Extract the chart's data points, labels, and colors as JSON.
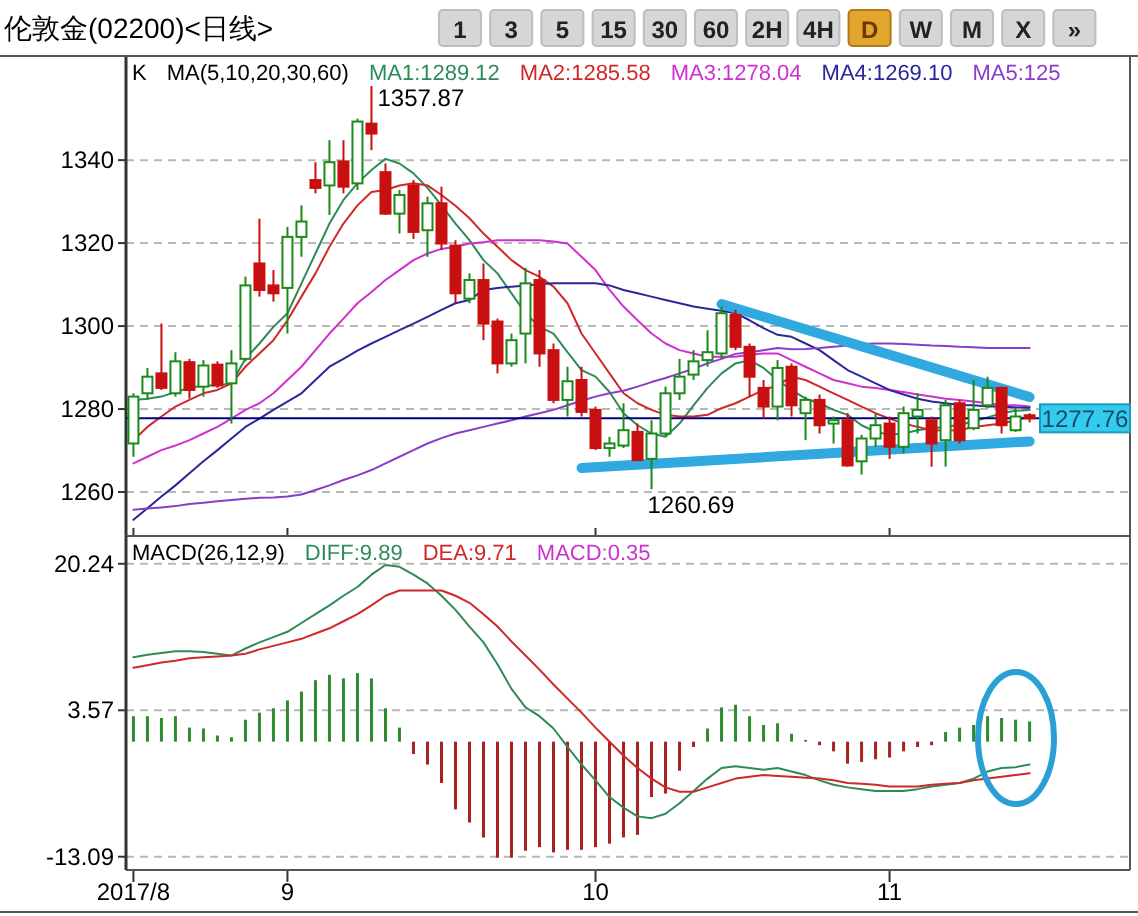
{
  "chart_data": [
    {
      "type": "candlestick",
      "title": "伦敦金(02200)<日线>",
      "legend_title": "MA(5,10,20,30,60)",
      "legend": "top",
      "grid": "y",
      "tick_labels": "y",
      "annotations": [
        "1",
        "3",
        "5",
        "15",
        "30",
        "60",
        "2H",
        "4H",
        "D",
        "W",
        "M",
        "X",
        "»",
        "K",
        "1357.87",
        "1260.69"
      ],
      "categories": [
        "2017/8",
        null,
        null,
        null,
        null,
        null,
        null,
        null,
        null,
        null,
        null,
        "9",
        null,
        null,
        null,
        null,
        null,
        null,
        null,
        null,
        null,
        null,
        null,
        null,
        null,
        null,
        null,
        null,
        null,
        null,
        null,
        null,
        null,
        "10",
        null,
        null,
        null,
        null,
        null,
        null,
        null,
        null,
        null,
        null,
        null,
        null,
        null,
        null,
        null,
        null,
        null,
        null,
        null,
        null,
        "11",
        null,
        null,
        null,
        null,
        null,
        null,
        null,
        null,
        null,
        null
      ],
      "ohlc": [
        [
          1271.7,
          1283.8,
          1268.5,
          1283.0
        ],
        [
          1283.8,
          1289.9,
          1282.2,
          1287.8
        ],
        [
          1288.6,
          1300.6,
          1284.6,
          1285.1
        ],
        [
          1283.8,
          1293.7,
          1283.0,
          1291.5
        ],
        [
          1291.3,
          1292.1,
          1282.5,
          1284.6
        ],
        [
          1285.4,
          1291.8,
          1283.0,
          1290.5
        ],
        [
          1290.7,
          1291.5,
          1285.1,
          1285.7
        ],
        [
          1286.2,
          1294.2,
          1276.5,
          1291.0
        ],
        [
          1292.1,
          1311.9,
          1291.5,
          1309.8
        ],
        [
          1315.1,
          1325.9,
          1307.1,
          1308.7
        ],
        [
          1309.8,
          1313.5,
          1305.9,
          1307.9
        ],
        [
          1309.2,
          1323.9,
          1298.2,
          1321.5
        ],
        [
          1321.5,
          1329.1,
          1316.7,
          1325.2
        ],
        [
          1335.2,
          1339.5,
          1332.0,
          1333.3
        ],
        [
          1333.9,
          1344.8,
          1326.8,
          1339.5
        ],
        [
          1339.7,
          1344.8,
          1332.0,
          1333.6
        ],
        [
          1334.4,
          1350.0,
          1332.8,
          1349.3
        ],
        [
          1348.8,
          1357.87,
          1342.4,
          1346.4
        ],
        [
          1337.1,
          1339.2,
          1326.8,
          1327.1
        ],
        [
          1327.1,
          1332.8,
          1322.3,
          1331.6
        ],
        [
          1333.9,
          1335.2,
          1321.0,
          1322.7
        ],
        [
          1323.1,
          1331.2,
          1316.7,
          1329.6
        ],
        [
          1329.6,
          1333.6,
          1318.3,
          1319.9
        ],
        [
          1319.4,
          1320.7,
          1305.5,
          1307.9
        ],
        [
          1306.6,
          1312.7,
          1305.5,
          1311.1
        ],
        [
          1311.1,
          1315.1,
          1296.6,
          1300.6
        ],
        [
          1301.1,
          1301.8,
          1288.6,
          1291.0
        ],
        [
          1291.0,
          1298.2,
          1290.2,
          1296.6
        ],
        [
          1298.2,
          1314.0,
          1291.0,
          1310.3
        ],
        [
          1311.1,
          1313.5,
          1290.2,
          1293.4
        ],
        [
          1294.2,
          1295.8,
          1281.4,
          1282.2
        ],
        [
          1282.2,
          1290.2,
          1278.2,
          1286.7
        ],
        [
          1287.0,
          1290.2,
          1278.2,
          1279.3
        ],
        [
          1279.8,
          1280.6,
          1270.1,
          1270.6
        ],
        [
          1270.6,
          1273.3,
          1268.5,
          1271.7
        ],
        [
          1271.2,
          1281.4,
          1270.6,
          1274.9
        ],
        [
          1274.5,
          1276.5,
          1267.4,
          1267.7
        ],
        [
          1268.0,
          1277.3,
          1260.69,
          1274.1
        ],
        [
          1274.1,
          1285.4,
          1273.5,
          1283.8
        ],
        [
          1283.8,
          1292.1,
          1282.2,
          1287.8
        ],
        [
          1288.3,
          1294.2,
          1287.0,
          1291.5
        ],
        [
          1291.8,
          1299.0,
          1290.2,
          1293.7
        ],
        [
          1293.4,
          1304.7,
          1292.1,
          1303.1
        ],
        [
          1302.7,
          1303.9,
          1294.2,
          1295.0
        ],
        [
          1295.0,
          1295.8,
          1283.0,
          1287.8
        ],
        [
          1285.1,
          1287.0,
          1277.7,
          1280.6
        ],
        [
          1280.6,
          1291.8,
          1277.3,
          1289.9
        ],
        [
          1290.2,
          1291.0,
          1278.2,
          1280.9
        ],
        [
          1279.0,
          1283.0,
          1272.5,
          1282.2
        ],
        [
          1282.2,
          1283.5,
          1274.1,
          1276.1
        ],
        [
          1276.5,
          1278.2,
          1271.7,
          1277.3
        ],
        [
          1277.3,
          1279.0,
          1266.1,
          1266.4
        ],
        [
          1267.4,
          1273.8,
          1264.2,
          1272.9
        ],
        [
          1272.9,
          1279.0,
          1270.9,
          1276.1
        ],
        [
          1276.5,
          1278.2,
          1268.0,
          1270.9
        ],
        [
          1270.9,
          1280.6,
          1269.3,
          1279.0
        ],
        [
          1278.2,
          1283.8,
          1274.1,
          1279.8
        ],
        [
          1277.3,
          1278.2,
          1266.1,
          1271.7
        ],
        [
          1272.5,
          1282.2,
          1266.1,
          1280.9
        ],
        [
          1281.4,
          1282.2,
          1271.7,
          1272.5
        ],
        [
          1275.4,
          1287.0,
          1274.9,
          1279.8
        ],
        [
          1280.9,
          1287.8,
          1280.2,
          1285.1
        ],
        [
          1285.1,
          1285.4,
          1274.1,
          1276.1
        ],
        [
          1274.9,
          1280.2,
          1274.5,
          1278.2
        ],
        [
          1278.5,
          1279.0,
          1276.8,
          1277.76
        ]
      ],
      "series": [
        {
          "name": "MA1:1289.12",
          "type": "line",
          "color": "#2e8b57",
          "values": [
            1282.2,
            1282.5,
            1283.0,
            1284.1,
            1285.1,
            1285.7,
            1285.7,
            1286.2,
            1292.1,
            1295.8,
            1299.8,
            1303.1,
            1310.3,
            1317.5,
            1324.7,
            1330.4,
            1334.4,
            1337.6,
            1340.3,
            1339.2,
            1336.8,
            1333.3,
            1329.1,
            1324.7,
            1320.7,
            1315.9,
            1312.7,
            1307.9,
            1303.1,
            1299.8,
            1298.2,
            1293.7,
            1289.4,
            1287.8,
            1284.1,
            1279.0,
            1276.1,
            1274.1,
            1273.3,
            1276.5,
            1280.9,
            1285.1,
            1288.6,
            1291.0,
            1291.8,
            1289.9,
            1287.0,
            1284.6,
            1282.5,
            1281.4,
            1279.8,
            1278.6,
            1276.1,
            1274.5,
            1273.8,
            1274.1,
            1274.9,
            1275.4,
            1275.7,
            1276.2,
            1277.0,
            1278.0,
            1279.0,
            1279.6,
            1279.8
          ]
        },
        {
          "name": "MA2:1285.58",
          "type": "line",
          "color": "#d02828",
          "values": [
            1272.5,
            1275.7,
            1278.2,
            1280.6,
            1282.2,
            1283.8,
            1284.6,
            1286.2,
            1290.2,
            1293.4,
            1296.6,
            1301.4,
            1307.1,
            1312.7,
            1319.1,
            1324.7,
            1329.1,
            1332.3,
            1332.8,
            1333.9,
            1334.4,
            1333.9,
            1331.6,
            1329.0,
            1326.0,
            1322.3,
            1319.1,
            1315.9,
            1313.5,
            1311.9,
            1309.5,
            1305.5,
            1298.2,
            1293.4,
            1288.6,
            1283.8,
            1281.4,
            1279.8,
            1278.6,
            1278.2,
            1278.2,
            1278.6,
            1280.2,
            1281.4,
            1283.0,
            1284.6,
            1285.7,
            1287.8,
            1287.0,
            1285.4,
            1283.8,
            1282.2,
            1280.6,
            1279.0,
            1277.7,
            1276.5,
            1275.7,
            1274.9,
            1274.8,
            1274.9,
            1275.7,
            1276.1,
            1276.5,
            1277.3,
            1278.2
          ]
        },
        {
          "name": "MA3:1278.04",
          "type": "line",
          "color": "#d030d0",
          "values": [
            1266.9,
            1268.5,
            1270.1,
            1271.2,
            1272.5,
            1274.1,
            1275.7,
            1277.7,
            1279.8,
            1281.4,
            1283.8,
            1287.0,
            1290.2,
            1294.2,
            1298.2,
            1301.8,
            1305.5,
            1308.2,
            1311.1,
            1313.5,
            1315.9,
            1317.5,
            1318.6,
            1319.1,
            1319.9,
            1320.2,
            1320.7,
            1320.7,
            1320.7,
            1320.7,
            1320.4,
            1319.9,
            1316.7,
            1313.5,
            1308.7,
            1304.7,
            1301.4,
            1298.2,
            1295.8,
            1294.2,
            1293.4,
            1292.6,
            1292.6,
            1292.6,
            1293.1,
            1293.4,
            1293.4,
            1291.8,
            1290.2,
            1288.6,
            1287.0,
            1286.2,
            1285.4,
            1285.1,
            1284.6,
            1284.1,
            1283.5,
            1283.0,
            1282.5,
            1282.2,
            1281.8,
            1281.4,
            1281.0,
            1280.9,
            1280.6
          ]
        },
        {
          "name": "MA4:1269.10",
          "type": "line",
          "color": "#28289a",
          "values": [
            1253.3,
            1256.1,
            1258.9,
            1261.6,
            1264.5,
            1267.4,
            1270.1,
            1272.9,
            1275.7,
            1277.7,
            1279.8,
            1281.8,
            1283.8,
            1287.0,
            1290.2,
            1292.1,
            1294.1,
            1295.8,
            1297.4,
            1299.0,
            1300.6,
            1302.2,
            1303.9,
            1305.5,
            1306.3,
            1308.7,
            1309.2,
            1309.5,
            1309.8,
            1310.1,
            1310.3,
            1310.3,
            1310.3,
            1310.3,
            1309.8,
            1308.7,
            1307.9,
            1307.1,
            1306.3,
            1305.5,
            1304.7,
            1304.2,
            1303.7,
            1303.1,
            1301.4,
            1299.5,
            1297.9,
            1297.4,
            1295.8,
            1294.2,
            1291.8,
            1289.4,
            1287.8,
            1286.2,
            1284.6,
            1283.5,
            1282.5,
            1281.8,
            1281.4,
            1281.0,
            1280.9,
            1280.6,
            1280.6,
            1280.4,
            1280.3
          ]
        },
        {
          "name": "MA5:125",
          "type": "line",
          "color": "#8a3cc8",
          "values": [
            1255.7,
            1256.0,
            1256.3,
            1256.6,
            1257.1,
            1257.4,
            1257.8,
            1258.1,
            1258.4,
            1258.6,
            1258.7,
            1258.9,
            1259.4,
            1260.5,
            1261.6,
            1262.9,
            1264.0,
            1265.3,
            1266.9,
            1268.5,
            1270.1,
            1271.7,
            1273.0,
            1274.1,
            1274.9,
            1275.7,
            1276.5,
            1277.3,
            1278.2,
            1279.0,
            1279.8,
            1280.9,
            1282.0,
            1283.0,
            1283.8,
            1284.4,
            1285.4,
            1286.5,
            1287.5,
            1288.6,
            1289.7,
            1291.0,
            1292.1,
            1293.3,
            1293.7,
            1294.2,
            1294.7,
            1294.4,
            1294.5,
            1294.7,
            1295.0,
            1295.3,
            1295.7,
            1295.8,
            1295.8,
            1295.7,
            1295.5,
            1295.3,
            1295.2,
            1295.0,
            1294.9,
            1294.7,
            1294.7,
            1294.7,
            1294.7
          ]
        },
        {
          "type": "line",
          "color": "#30a8e0",
          "values": [
            null,
            null,
            null,
            null,
            null,
            null,
            null,
            null,
            null,
            null,
            null,
            null,
            null,
            null,
            null,
            null,
            null,
            null,
            null,
            null,
            null,
            null,
            null,
            null,
            null,
            null,
            null,
            null,
            null,
            null,
            null,
            null,
            null,
            null,
            null,
            null,
            null,
            null,
            null,
            null,
            null,
            null,
            1305.3,
            null,
            null,
            null,
            null,
            null,
            null,
            null,
            null,
            null,
            null,
            null,
            null,
            null,
            null,
            null,
            null,
            null,
            null,
            null,
            null,
            null,
            1282.9
          ]
        },
        {
          "type": "line",
          "color": "#30a8e0",
          "values": [
            null,
            null,
            null,
            null,
            null,
            null,
            null,
            null,
            null,
            null,
            null,
            null,
            null,
            null,
            null,
            null,
            null,
            null,
            null,
            null,
            null,
            null,
            null,
            null,
            null,
            null,
            null,
            null,
            null,
            null,
            null,
            null,
            1265.8,
            null,
            null,
            null,
            null,
            null,
            null,
            null,
            null,
            null,
            null,
            null,
            null,
            null,
            null,
            null,
            null,
            null,
            null,
            null,
            null,
            null,
            null,
            null,
            null,
            null,
            null,
            null,
            null,
            null,
            null,
            null,
            1272.2
          ]
        }
      ],
      "ref_lines": [
        {
          "axis": "y",
          "value": 1277.76,
          "label": "1277.76",
          "color": "#000080"
        }
      ],
      "ylim": [
        1249.4,
        1365.1
      ],
      "yticks": [
        1260,
        1280,
        1300,
        1320,
        1340
      ]
    },
    {
      "type": "bar",
      "legend_title": "MACD(26,12,9)",
      "legend": "top left",
      "grid": "y",
      "annotations": [
        "MACD:0.35"
      ],
      "categories": [
        "2017/8",
        null,
        null,
        null,
        null,
        null,
        null,
        null,
        null,
        null,
        null,
        "9",
        null,
        null,
        null,
        null,
        null,
        null,
        null,
        null,
        null,
        null,
        null,
        null,
        null,
        null,
        null,
        null,
        null,
        null,
        null,
        null,
        null,
        "10",
        null,
        null,
        null,
        null,
        null,
        null,
        null,
        null,
        null,
        null,
        null,
        null,
        null,
        null,
        null,
        null,
        null,
        null,
        null,
        null,
        "11",
        null,
        null,
        null,
        null,
        null,
        null,
        null,
        null,
        null,
        null
      ],
      "series": [
        {
          "name": "DIFF:9.89",
          "type": "line",
          "color": "#2e8b57",
          "values": [
            9.6,
            9.9,
            10.1,
            10.3,
            10.3,
            10.2,
            10.0,
            9.8,
            10.6,
            11.3,
            11.9,
            12.5,
            13.5,
            14.5,
            15.5,
            16.6,
            17.6,
            19.0,
            20.1,
            19.9,
            19.0,
            18.0,
            16.6,
            15.0,
            13.1,
            11.3,
            8.8,
            6.0,
            3.9,
            2.9,
            1.5,
            -0.6,
            -2.6,
            -4.4,
            -6.3,
            -7.5,
            -8.5,
            -8.7,
            -8.2,
            -7.0,
            -5.6,
            -4.2,
            -3.0,
            -2.8,
            -3.0,
            -3.2,
            -3.0,
            -3.4,
            -3.8,
            -4.4,
            -4.9,
            -5.2,
            -5.4,
            -5.6,
            -5.6,
            -5.6,
            -5.4,
            -5.1,
            -4.9,
            -4.7,
            -4.2,
            -3.4,
            -3.0,
            -2.9,
            -2.6
          ]
        },
        {
          "name": "DEA:9.71",
          "type": "line",
          "color": "#d02828",
          "values": [
            8.4,
            8.7,
            9.0,
            9.2,
            9.5,
            9.6,
            9.7,
            9.8,
            10.0,
            10.5,
            10.9,
            11.3,
            11.7,
            12.3,
            12.9,
            13.7,
            14.5,
            15.5,
            16.6,
            17.2,
            17.2,
            17.2,
            17.2,
            16.6,
            15.8,
            14.5,
            13.1,
            11.4,
            9.8,
            8.2,
            6.5,
            4.9,
            3.3,
            1.6,
            0.0,
            -1.6,
            -3.0,
            -4.2,
            -5.2,
            -5.7,
            -5.7,
            -5.2,
            -4.7,
            -4.2,
            -4.0,
            -3.8,
            -3.9,
            -4.0,
            -4.1,
            -4.2,
            -4.4,
            -4.7,
            -4.8,
            -4.9,
            -5.1,
            -5.1,
            -5.1,
            -4.9,
            -4.8,
            -4.7,
            -4.4,
            -4.2,
            -4.0,
            -3.8,
            -3.6
          ]
        },
        {
          "type": "bar",
          "colors": [
            "#2e8b2e",
            "#2e8b2e",
            "#2e8b2e",
            "#2e8b2e",
            "#2e8b2e",
            "#2e8b2e",
            "#2e8b2e",
            "#2e8b2e",
            "#2e8b2e",
            "#2e8b2e",
            "#2e8b2e",
            "#2e8b2e",
            "#2e8b2e",
            "#2e8b2e",
            "#2e8b2e",
            "#2e8b2e",
            "#2e8b2e",
            "#2e8b2e",
            "#2e8b2e",
            "#2e8b2e",
            "#a82020",
            "#a82020",
            "#a82020",
            "#a82020",
            "#a82020",
            "#a82020",
            "#a82020",
            "#a82020",
            "#a82020",
            "#a82020",
            "#a82020",
            "#a82020",
            "#a82020",
            "#a82020",
            "#a82020",
            "#a82020",
            "#a82020",
            "#a82020",
            "#a82020",
            "#a82020",
            "#a82020",
            "#2e8b2e",
            "#2e8b2e",
            "#2e8b2e",
            "#2e8b2e",
            "#2e8b2e",
            "#2e8b2e",
            "#2e8b2e",
            "#2e8b2e",
            "#a82020",
            "#a82020",
            "#a82020",
            "#a82020",
            "#a82020",
            "#a82020",
            "#a82020",
            "#a82020",
            "#a82020",
            "#2e8b2e",
            "#2e8b2e",
            "#2e8b2e",
            "#2e8b2e",
            "#2e8b2e",
            "#2e8b2e",
            "#2e8b2e"
          ],
          "values": [
            2.9,
            2.9,
            2.7,
            2.9,
            1.6,
            1.5,
            0.7,
            0.5,
            2.5,
            3.3,
            3.8,
            4.7,
            5.7,
            7.0,
            7.6,
            7.2,
            7.8,
            7.2,
            3.8,
            1.6,
            -1.4,
            -2.6,
            -4.7,
            -7.7,
            -9.2,
            -10.9,
            -13.2,
            -13.2,
            -12.4,
            -12.0,
            -12.6,
            -12.3,
            -12.3,
            -12.0,
            -11.6,
            -10.9,
            -10.6,
            -6.3,
            -5.9,
            -3.3,
            -0.6,
            1.5,
            3.9,
            4.2,
            2.9,
            1.9,
            2.1,
            0.9,
            0.2,
            -0.4,
            -1.1,
            -2.5,
            -2.3,
            -2.0,
            -1.8,
            -1.1,
            -0.6,
            -0.4,
            1.1,
            1.6,
            1.9,
            2.9,
            2.7,
            2.5,
            2.3
          ]
        }
      ],
      "ylim": [
        -14.6,
        23.4
      ],
      "yticks": [
        20.24,
        3.57,
        -13.09
      ]
    }
  ]
}
